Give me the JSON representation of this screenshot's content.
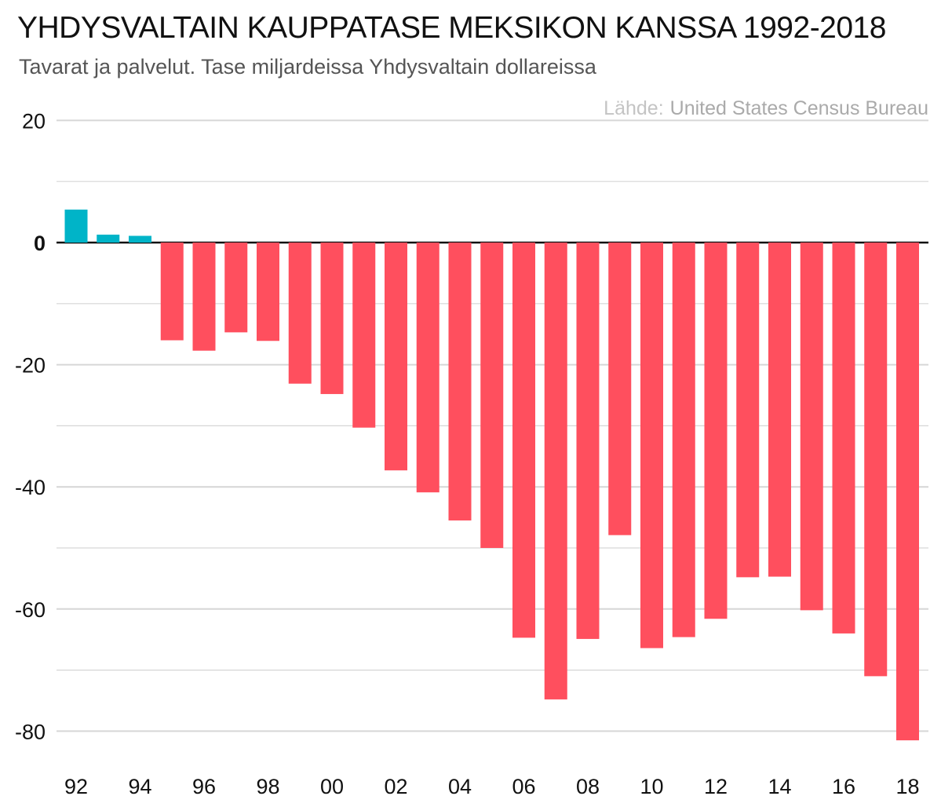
{
  "chart_data": {
    "type": "bar",
    "title": "YHDYSVALTAIN KAUPPATASE MEKSIKON KANSSA 1992-2018",
    "subtitle": "Tavarat ja palvelut. Tase miljardeissa Yhdysvaltain dollareissa",
    "source_prefix": "Lähde:",
    "source_name": "United States Census Bureau",
    "xlabel": "",
    "ylabel": "",
    "ylim": [
      -85,
      20
    ],
    "yticks": [
      20,
      0,
      -20,
      -40,
      -60,
      -80
    ],
    "ytick_labels": [
      "20",
      "0",
      "-20",
      "-40",
      "-60",
      "-80"
    ],
    "minor_gridlines": [
      10,
      -10,
      -30,
      -50,
      -70
    ],
    "categories": [
      "1992",
      "1993",
      "1994",
      "1995",
      "1996",
      "1997",
      "1998",
      "1999",
      "2000",
      "2001",
      "2002",
      "2003",
      "2004",
      "2005",
      "2006",
      "2007",
      "2008",
      "2009",
      "2010",
      "2011",
      "2012",
      "2013",
      "2014",
      "2015",
      "2016",
      "2017",
      "2018"
    ],
    "values": [
      5.4,
      1.3,
      1.1,
      -16.0,
      -17.7,
      -14.7,
      -16.1,
      -23.1,
      -24.8,
      -30.3,
      -37.3,
      -40.9,
      -45.5,
      -50.0,
      -64.7,
      -74.8,
      -64.9,
      -47.9,
      -66.4,
      -64.6,
      -61.6,
      -54.8,
      -54.7,
      -60.2,
      -64.0,
      -71.0,
      -81.5
    ]
  },
  "x_tick_labels": [
    "92",
    "94",
    "96",
    "98",
    "00",
    "02",
    "04",
    "06",
    "08",
    "10",
    "12",
    "14",
    "16",
    "18"
  ],
  "colors": {
    "positive": "#00b4c8",
    "negative": "#ff4f5e",
    "grid": "#d6d6d6",
    "zero_line": "#111111"
  }
}
